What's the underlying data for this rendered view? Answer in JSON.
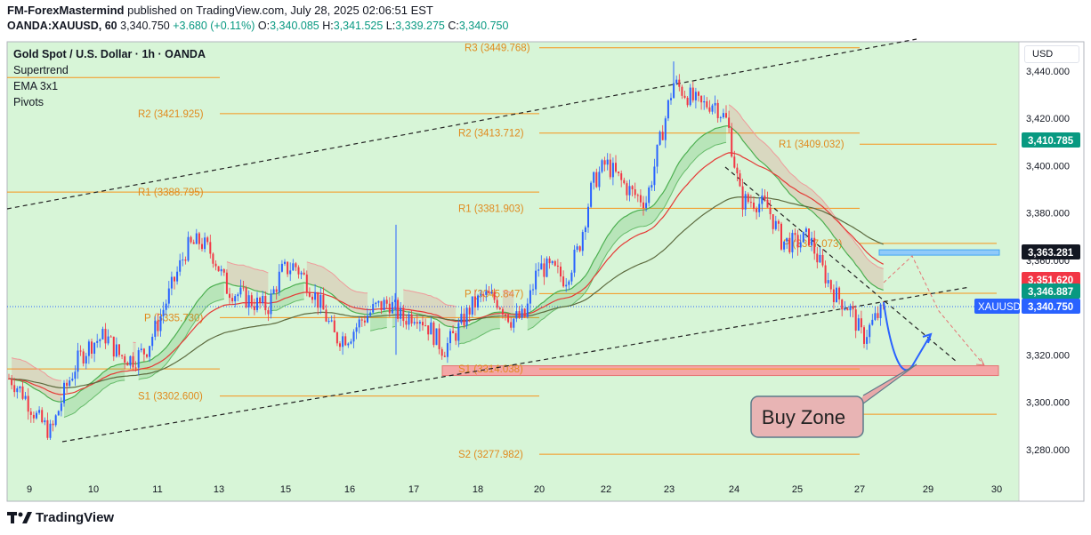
{
  "header": {
    "publisher": "FM-ForexMastermind",
    "published_text": "published on TradingView.com, July 28, 2025 02:06:51 EST",
    "symbol": "OANDA:XAUUSD, 60",
    "last": "3,340.750",
    "change": "+3.680 (+0.11%)",
    "o_label": "O:",
    "o_value": "3,340.085",
    "h_label": "H:",
    "h_value": "3,341.525",
    "l_label": "L:",
    "l_value": "3,339.275",
    "c_label": "C:",
    "c_value": "3,340.750"
  },
  "legend": {
    "title": "Gold Spot / U.S. Dollar · 1h · OANDA",
    "items": [
      "Supertrend",
      "EMA 3x1",
      "Pivots"
    ]
  },
  "currency_button": "USD",
  "footer": {
    "brand": "TradingView"
  },
  "colors": {
    "background": "#d7f5d7",
    "bull": "#2962ff",
    "bear": "#f23645",
    "pivot": "#f7931a",
    "pivot_text": "#e08a1e",
    "ema_green": "#4caf50",
    "ema_red": "#e53935",
    "ema_dark": "#5d6b3f",
    "zone_red": "#f4a6a6",
    "zone_blue": "#90caf9"
  },
  "chart_data": {
    "type": "candlestick",
    "symbol": "XAUUSD",
    "timeframe": "1h",
    "x_ticks": [
      "9",
      "10",
      "11",
      "13",
      "15",
      "16",
      "17",
      "18",
      "20",
      "22",
      "23",
      "24",
      "25",
      "27",
      "29",
      "30"
    ],
    "y_ticks": [
      "3,440.000",
      "3,420.000",
      "3,400.000",
      "3,380.000",
      "3,360.000",
      "3,340.000",
      "3,320.000",
      "3,300.000",
      "3,280.000"
    ],
    "y_tick_values": [
      3440,
      3420,
      3400,
      3380,
      3360,
      3340,
      3320,
      3300,
      3280
    ],
    "ylim": [
      3268,
      3451
    ],
    "price_labels": [
      {
        "text": "3,410.785",
        "value": 3410.785,
        "color": "#089981"
      },
      {
        "text": "3,363.281",
        "value": 3363.281,
        "color": "#131722"
      },
      {
        "text": "3,351.620",
        "value": 3351.62,
        "color": "#f23645"
      },
      {
        "text": "3,346.887",
        "value": 3346.887,
        "color": "#089981"
      },
      {
        "text": "3,340.750",
        "value": 3340.75,
        "color": "#2962ff"
      }
    ],
    "symbol_tag": "XAUUSD",
    "pivot_levels": [
      {
        "label": "R3 (3449.768)",
        "value": 3449.768
      },
      {
        "label": "R2 (3421.925)",
        "value": 3421.925
      },
      {
        "label": "R1 (3388.795)",
        "value": 3388.795
      },
      {
        "label": "R2 (3413.712)",
        "value": 3413.712
      },
      {
        "label": "R1 (3381.903)",
        "value": 3381.903
      },
      {
        "label": "P (3345.847)",
        "value": 3345.847
      },
      {
        "label": "P (3335.730)",
        "value": 3335.73
      },
      {
        "label": "S1 (3314.038)",
        "value": 3314.038
      },
      {
        "label": "S1 (3302.600)",
        "value": 3302.6
      },
      {
        "label": "S2 (3277.982)",
        "value": 3277.982
      },
      {
        "label": "R1 (3409.032)",
        "value": 3409.032
      },
      {
        "label": "P (3367.073)",
        "value": 3367.073
      }
    ],
    "annotation": "Buy Zone",
    "zones": [
      {
        "name": "support-zone",
        "from": 3312,
        "to": 3315
      },
      {
        "name": "resistance-box",
        "from": 3362.5,
        "to": 3364
      }
    ],
    "close_path": [
      3310,
      3303,
      3293,
      3287,
      3305,
      3318,
      3325,
      3328,
      3320,
      3318,
      3322,
      3335,
      3350,
      3365,
      3368,
      3362,
      3348,
      3345,
      3342,
      3340,
      3355,
      3358,
      3350,
      3340,
      3327,
      3328,
      3335,
      3340,
      3342,
      3335,
      3338,
      3331,
      3322,
      3330,
      3340,
      3345,
      3343,
      3335,
      3336,
      3357,
      3356,
      3352,
      3365,
      3392,
      3401,
      3394,
      3388,
      3385,
      3410,
      3435,
      3430,
      3425,
      3427,
      3418,
      3385,
      3385,
      3382,
      3368,
      3367,
      3370,
      3356,
      3345,
      3340,
      3327,
      3336,
      3341
    ]
  }
}
